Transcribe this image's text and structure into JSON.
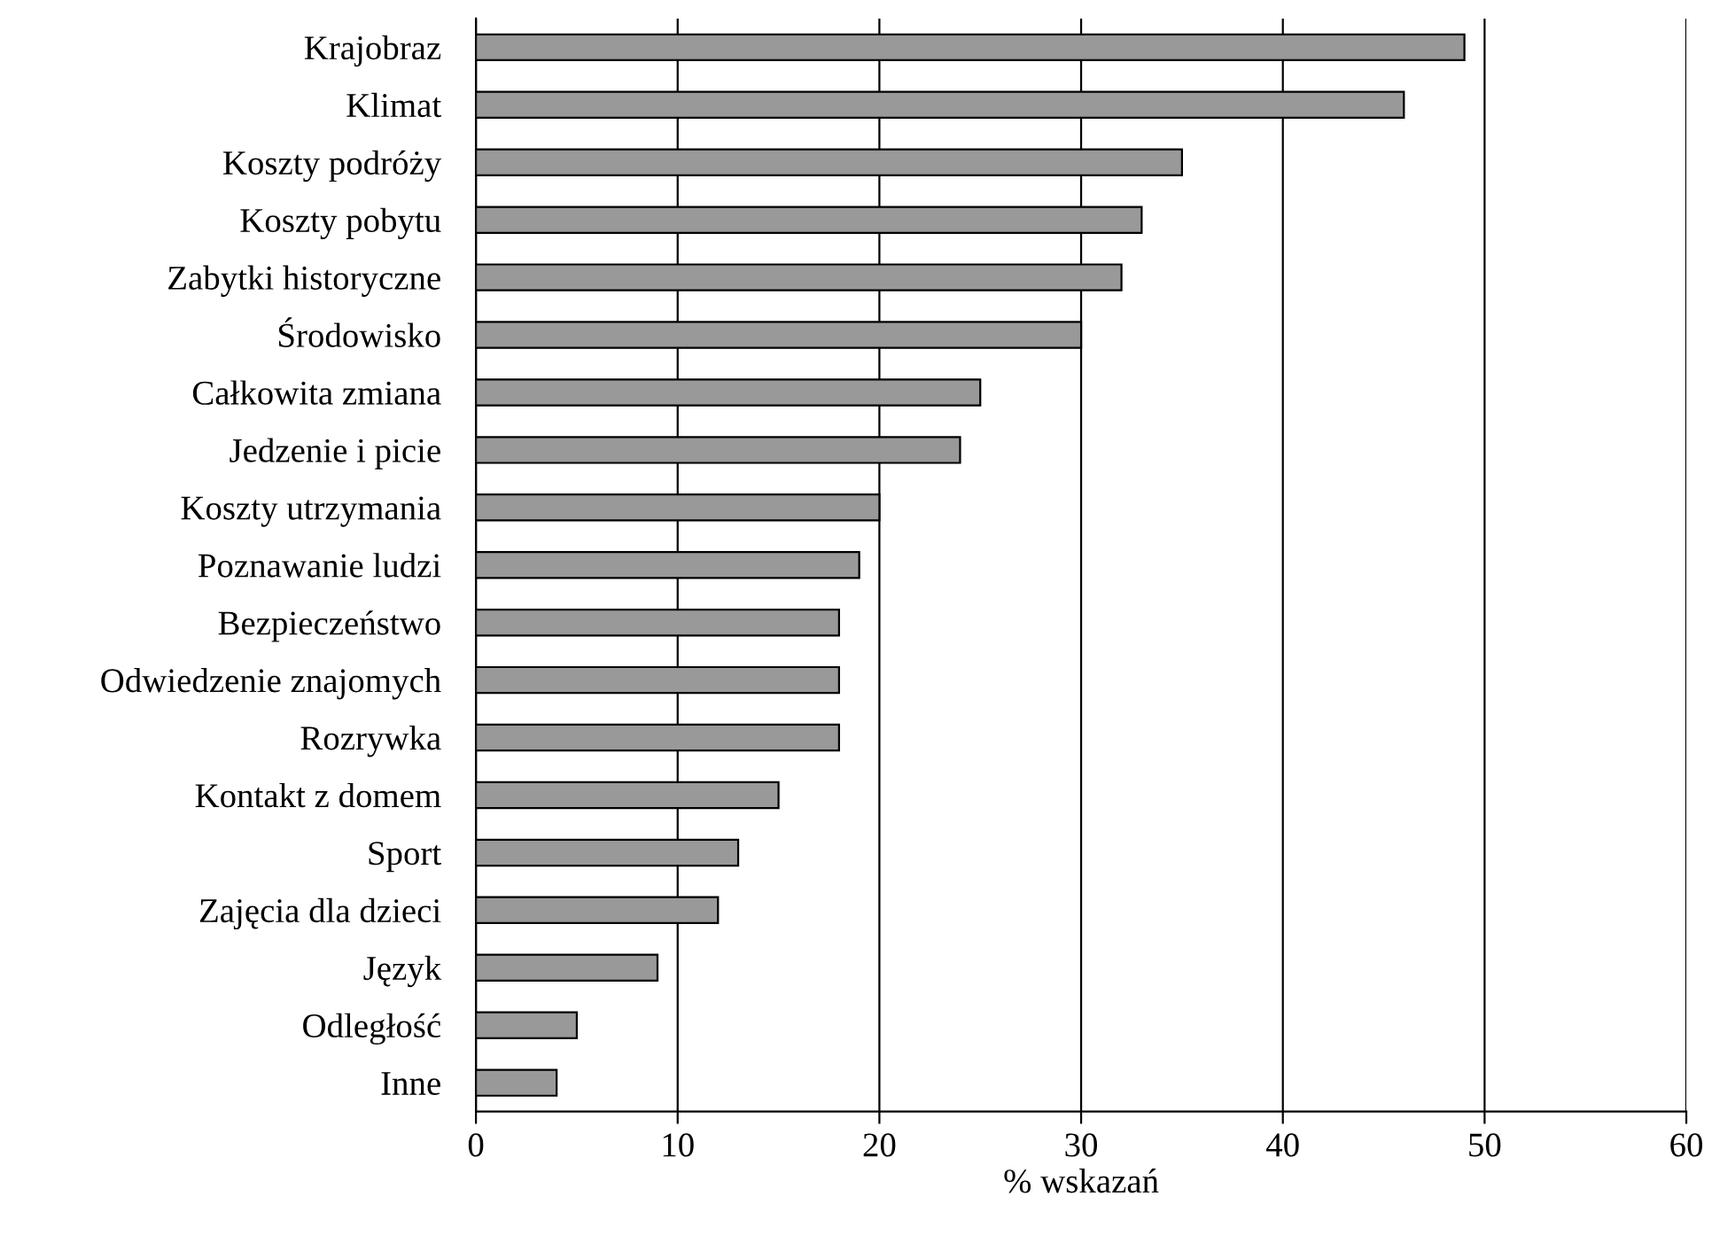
{
  "chart_data": {
    "type": "bar",
    "orientation": "horizontal",
    "xlabel": "% wskazań",
    "categories": [
      "Krajobraz",
      "Klimat",
      "Koszty podróży",
      "Koszty pobytu",
      "Zabytki historyczne",
      "Środowisko",
      "Całkowita zmiana",
      "Jedzenie i picie",
      "Koszty utrzymania",
      "Poznawanie ludzi",
      "Bezpieczeństwo",
      "Odwiedzenie znajomych",
      "Rozrywka",
      "Kontakt z domem",
      "Sport",
      "Zajęcia dla dzieci",
      "Język",
      "Odległość",
      "Inne"
    ],
    "values": [
      49,
      46,
      35,
      33,
      32,
      30,
      25,
      24,
      20,
      19,
      18,
      18,
      18,
      15,
      13,
      12,
      9,
      5,
      4
    ],
    "color": "#999999",
    "xlim": [
      0,
      60
    ],
    "xticks": [
      0,
      10,
      20,
      30,
      40,
      50,
      60
    ],
    "grid": "x"
  }
}
